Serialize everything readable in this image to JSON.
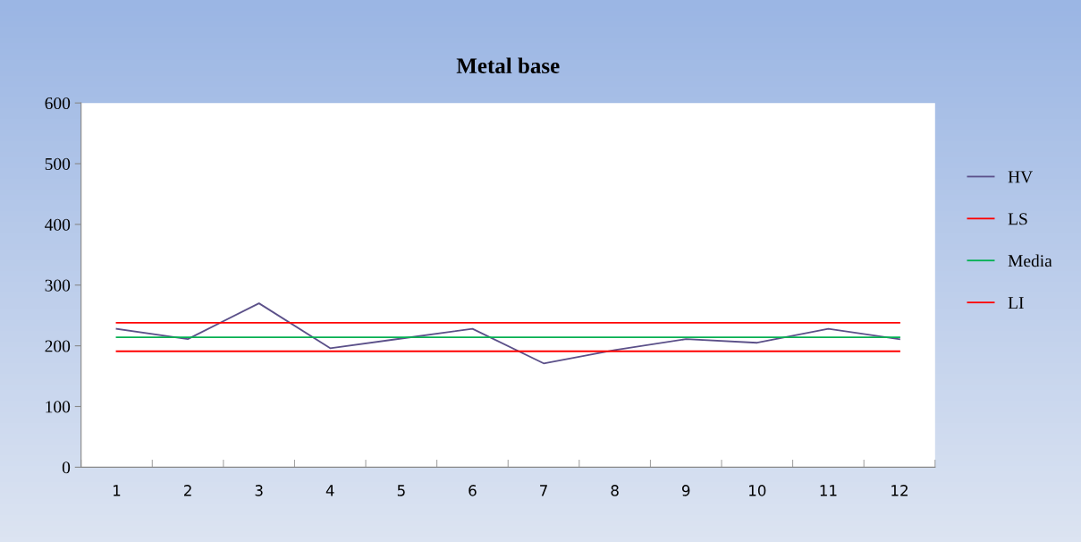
{
  "chart_data": {
    "type": "line",
    "title": "Metal base",
    "categories": [
      "1",
      "2",
      "3",
      "4",
      "5",
      "6",
      "7",
      "8",
      "9",
      "10",
      "11",
      "12"
    ],
    "series": [
      {
        "name": "HV",
        "color": "#5b5089",
        "values": [
          228,
          211,
          270,
          196,
          212,
          228,
          171,
          193,
          211,
          205,
          228,
          211
        ]
      },
      {
        "name": "LS",
        "color": "#ff0000",
        "values": [
          238,
          238,
          238,
          238,
          238,
          238,
          238,
          238,
          238,
          238,
          238,
          238
        ]
      },
      {
        "name": "Media",
        "color": "#00b050",
        "values": [
          214,
          214,
          214,
          214,
          214,
          214,
          214,
          214,
          214,
          214,
          214,
          214
        ]
      },
      {
        "name": "LI",
        "color": "#ff0000",
        "values": [
          191,
          191,
          191,
          191,
          191,
          191,
          191,
          191,
          191,
          191,
          191,
          191
        ]
      }
    ],
    "ylim": [
      0,
      600
    ],
    "yticks": [
      0,
      100,
      200,
      300,
      400,
      500,
      600
    ],
    "grid": false,
    "legend": "right",
    "marker": "none",
    "line_style": "solid"
  }
}
